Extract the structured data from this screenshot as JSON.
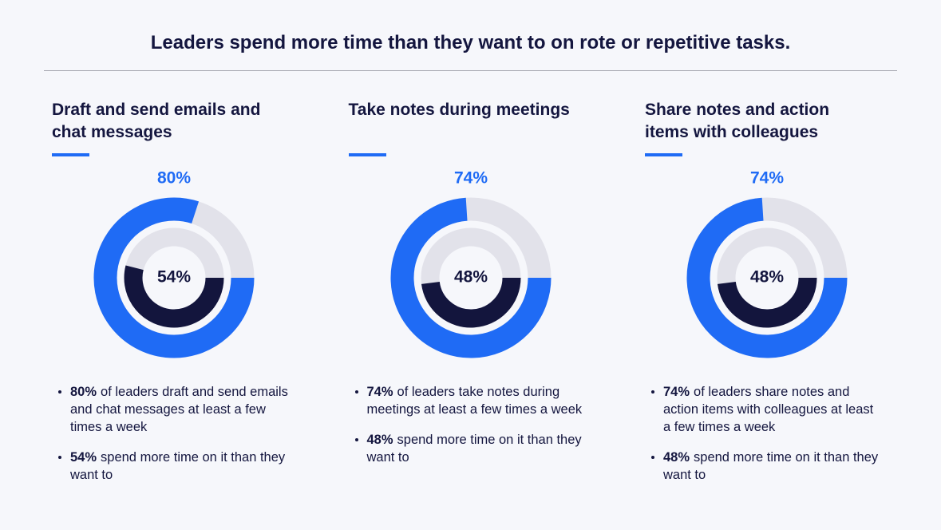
{
  "title": "Leaders spend more time than they want to on rote or repetitive tasks.",
  "chart_data": [
    {
      "type": "donut",
      "title": "Draft and send emails and chat messages",
      "track_color": "#e2e2ea",
      "series": [
        {
          "color": "#1f6bf5",
          "values": [
            80
          ],
          "value_labels": [
            "80%"
          ]
        },
        {
          "color": "#13153d",
          "values": [
            54
          ],
          "value_labels": [
            "54%"
          ]
        }
      ],
      "notes": [
        {
          "bold": "80%",
          "text": "of leaders draft and send emails and chat messages at least a few times a week"
        },
        {
          "bold": "54%",
          "text": "spend more time on it than they want to"
        }
      ]
    },
    {
      "type": "donut",
      "title": "Take notes during meetings",
      "track_color": "#e2e2ea",
      "series": [
        {
          "color": "#1f6bf5",
          "values": [
            74
          ],
          "value_labels": [
            "74%"
          ]
        },
        {
          "color": "#13153d",
          "values": [
            48
          ],
          "value_labels": [
            "48%"
          ]
        }
      ],
      "notes": [
        {
          "bold": "74%",
          "text": "of leaders take notes during meetings at least a few times a week"
        },
        {
          "bold": "48%",
          "text": "spend more time on it than they want to"
        }
      ]
    },
    {
      "type": "donut",
      "title": "Share notes and action items with colleagues",
      "track_color": "#e2e2ea",
      "series": [
        {
          "color": "#1f6bf5",
          "values": [
            74
          ],
          "value_labels": [
            "74%"
          ]
        },
        {
          "color": "#13153d",
          "values": [
            48
          ],
          "value_labels": [
            "48%"
          ]
        }
      ],
      "notes": [
        {
          "bold": "74%",
          "text": "of leaders share notes and action items with colleagues at least a few times a week"
        },
        {
          "bold": "48%",
          "text": "spend more time on it than they want to"
        }
      ]
    }
  ]
}
